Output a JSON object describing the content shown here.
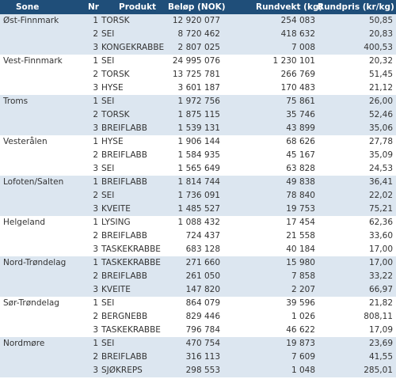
{
  "table": {
    "header": [
      "Sone",
      "Nr",
      "Produkt",
      "Beløp (NOK)",
      "Rundvekt (kg)",
      "Rundpris (kr/kg)"
    ],
    "groups": [
      {
        "zone": "Øst-Finnmark",
        "rows": [
          [
            "1",
            "TORSK",
            "12 920 077",
            "254 083",
            "50,85"
          ],
          [
            "2",
            "SEI",
            "8 720 462",
            "418 632",
            "20,83"
          ],
          [
            "3",
            "KONGEKRABBE",
            "2 807 025",
            "7 008",
            "400,53"
          ]
        ]
      },
      {
        "zone": "Vest-Finnmark",
        "rows": [
          [
            "1",
            "SEI",
            "24 995 076",
            "1 230 101",
            "20,32"
          ],
          [
            "2",
            "TORSK",
            "13 725 781",
            "266 769",
            "51,45"
          ],
          [
            "3",
            "HYSE",
            "3 601 187",
            "170 483",
            "21,12"
          ]
        ]
      },
      {
        "zone": "Troms",
        "rows": [
          [
            "1",
            "SEI",
            "1 972 756",
            "75 861",
            "26,00"
          ],
          [
            "2",
            "TORSK",
            "1 875 115",
            "35 746",
            "52,46"
          ],
          [
            "3",
            "BREIFLABB",
            "1 539 131",
            "43 899",
            "35,06"
          ]
        ]
      },
      {
        "zone": "Vesterålen",
        "rows": [
          [
            "1",
            "HYSE",
            "1 906 144",
            "68 626",
            "27,78"
          ],
          [
            "2",
            "BREIFLABB",
            "1 584 935",
            "45 167",
            "35,09"
          ],
          [
            "3",
            "SEI",
            "1 565 649",
            "63 828",
            "24,53"
          ]
        ]
      },
      {
        "zone": "Lofoten/Salten",
        "rows": [
          [
            "1",
            "BREIFLABB",
            "1 814 744",
            "49 838",
            "36,41"
          ],
          [
            "2",
            "SEI",
            "1 736 091",
            "78 840",
            "22,02"
          ],
          [
            "3",
            "KVEITE",
            "1 485 527",
            "19 753",
            "75,21"
          ]
        ]
      },
      {
        "zone": "Helgeland",
        "rows": [
          [
            "1",
            "LYSING",
            "1 088 432",
            "17 454",
            "62,36"
          ],
          [
            "2",
            "BREIFLABB",
            "724 437",
            "21 558",
            "33,60"
          ],
          [
            "3",
            "TASKEKRABBE",
            "683 128",
            "40 184",
            "17,00"
          ]
        ]
      },
      {
        "zone": "Nord-Trøndelag",
        "rows": [
          [
            "1",
            "TASKEKRABBE",
            "271 660",
            "15 980",
            "17,00"
          ],
          [
            "2",
            "BREIFLABB",
            "261 050",
            "7 858",
            "33,22"
          ],
          [
            "3",
            "KVEITE",
            "147 820",
            "2 207",
            "66,97"
          ]
        ]
      },
      {
        "zone": "Sør-Trøndelag",
        "rows": [
          [
            "1",
            "SEI",
            "864 079",
            "39 596",
            "21,82"
          ],
          [
            "2",
            "BERGNEBB",
            "829 446",
            "1 026",
            "808,11"
          ],
          [
            "3",
            "TASKEKRABBE",
            "796 784",
            "46 622",
            "17,09"
          ]
        ]
      },
      {
        "zone": "Nordmøre",
        "rows": [
          [
            "1",
            "SEI",
            "470 754",
            "19 873",
            "23,69"
          ],
          [
            "2",
            "BREIFLABB",
            "316 113",
            "7 609",
            "41,55"
          ],
          [
            "3",
            "SJØKREPS",
            "298 553",
            "1 048",
            "285,01"
          ]
        ]
      }
    ]
  }
}
